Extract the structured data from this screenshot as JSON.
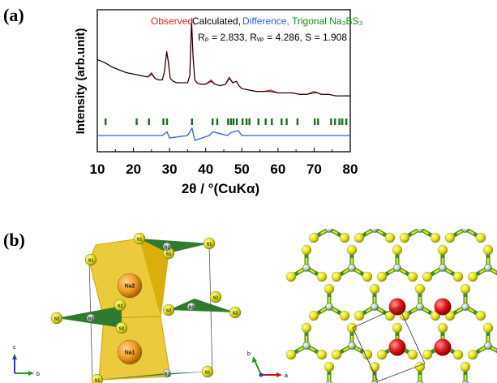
{
  "panels": {
    "a": "(a)",
    "b": "(b)"
  },
  "chart_data": {
    "type": "line",
    "xlabel": "2θ / °(CuKα)",
    "ylabel": "Intensity (arb.unit)",
    "xlim": [
      10,
      80
    ],
    "xticks": [
      10,
      20,
      30,
      40,
      50,
      60,
      70,
      80
    ],
    "legend": {
      "observed": "Observed,",
      "calculated": "Calculated,",
      "difference": "Difference,",
      "phase": "Trigonal Na₃BS₃",
      "placement": "top-right"
    },
    "stats": "Rₚ = 2.833, Rᵥₚ = 4.286, S = 1.908",
    "series": [
      {
        "name": "Observed",
        "color": "#d62728",
        "x": [
          10,
          12,
          14,
          16,
          18,
          20,
          22,
          24,
          25,
          26,
          27,
          28,
          28.6,
          29.2,
          29.6,
          30.2,
          31,
          32,
          33,
          34,
          35,
          35.6,
          36.1,
          36.5,
          37,
          37.6,
          38.5,
          40,
          41.5,
          42.5,
          44,
          45.5,
          46.5,
          47.5,
          48.5,
          49.2,
          50,
          52,
          54,
          56,
          58,
          60,
          62,
          64,
          66,
          68,
          70,
          71,
          72,
          74,
          76,
          78,
          80
        ],
        "y": [
          0.58,
          0.56,
          0.53,
          0.51,
          0.49,
          0.48,
          0.47,
          0.46,
          0.49,
          0.45,
          0.44,
          0.44,
          0.5,
          0.64,
          0.58,
          0.45,
          0.43,
          0.42,
          0.42,
          0.42,
          0.42,
          0.47,
          0.85,
          0.6,
          0.44,
          0.42,
          0.41,
          0.41,
          0.44,
          0.41,
          0.4,
          0.41,
          0.46,
          0.42,
          0.43,
          0.4,
          0.38,
          0.37,
          0.36,
          0.36,
          0.37,
          0.35,
          0.35,
          0.35,
          0.34,
          0.34,
          0.36,
          0.35,
          0.34,
          0.34,
          0.33,
          0.33,
          0.33
        ]
      },
      {
        "name": "Calculated",
        "color": "#000000",
        "x": [
          10,
          12,
          14,
          16,
          18,
          20,
          22,
          24,
          25,
          26,
          27,
          28,
          28.6,
          29.2,
          29.6,
          30.2,
          31,
          32,
          33,
          34,
          35,
          35.6,
          36.1,
          36.5,
          37,
          37.6,
          38.5,
          40,
          41.5,
          42.5,
          44,
          45.5,
          46.5,
          47.5,
          48.5,
          49.2,
          50,
          52,
          54,
          56,
          58,
          60,
          62,
          64,
          66,
          68,
          70,
          71,
          72,
          74,
          76,
          78,
          80
        ],
        "y": [
          0.58,
          0.56,
          0.53,
          0.51,
          0.49,
          0.48,
          0.47,
          0.46,
          0.48,
          0.45,
          0.44,
          0.44,
          0.5,
          0.63,
          0.57,
          0.45,
          0.43,
          0.42,
          0.42,
          0.42,
          0.42,
          0.47,
          0.84,
          0.6,
          0.44,
          0.42,
          0.41,
          0.41,
          0.43,
          0.41,
          0.4,
          0.41,
          0.45,
          0.42,
          0.43,
          0.4,
          0.38,
          0.37,
          0.36,
          0.36,
          0.36,
          0.35,
          0.35,
          0.35,
          0.34,
          0.34,
          0.35,
          0.35,
          0.34,
          0.34,
          0.33,
          0.33,
          0.33
        ]
      },
      {
        "name": "Difference",
        "color": "#2f5fd0",
        "x": [
          10,
          20,
          28,
          29.3,
          30,
          35,
          36.2,
          37,
          41,
          42,
          46,
          47,
          49,
          50,
          60,
          70,
          80
        ],
        "y": [
          0.0,
          0.0,
          0.0,
          0.015,
          -0.01,
          0.0,
          0.03,
          -0.02,
          0.0,
          0.015,
          0.0,
          0.012,
          0.02,
          0.0,
          0.0,
          0.0,
          0.0
        ]
      },
      {
        "name": "Trigonal Na₃BS₃",
        "color": "#1a6b1a",
        "x": [
          12.3,
          20.9,
          24.3,
          28.3,
          29.3,
          36.2,
          41.9,
          43.2,
          46.2,
          47.0,
          47.7,
          48.6,
          50.2,
          51.3,
          52.1,
          54.6,
          56.6,
          58.3,
          61.0,
          62.4,
          65.4,
          70.2,
          71.1,
          74.7,
          75.8,
          77.0,
          77.8,
          78.9
        ]
      }
    ]
  },
  "structure": {
    "left_atoms": [
      "S1",
      "S1",
      "S1",
      "S1",
      "B1",
      "Na2",
      "S2",
      "S2",
      "S2",
      "S2",
      "S2",
      "S2",
      "B2",
      "B2",
      "Na1",
      "S1",
      "S1",
      "B1"
    ],
    "axes_left": {
      "c": "c",
      "b": "b"
    },
    "axes_right": {
      "b": "b",
      "a": "a"
    }
  }
}
